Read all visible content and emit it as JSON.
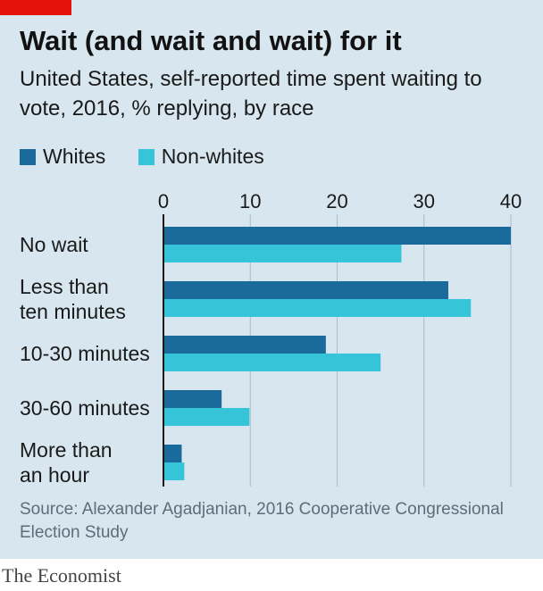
{
  "title": "Wait (and wait and wait) for it",
  "subtitle": "United States, self-reported time spent waiting to vote, 2016, % replying, by race",
  "source": "Source: Alexander Agadjanian, 2016 Cooperative Congressional Election Study",
  "brand": "The Economist",
  "colors": {
    "background": "#d8e6ef",
    "whites": "#1b6a9c",
    "non_whites": "#36c5d8",
    "accent_red": "#e3120b"
  },
  "chart_data": {
    "type": "bar",
    "orientation": "horizontal",
    "title": "Wait (and wait and wait) for it",
    "subtitle": "United States, self-reported time spent waiting to vote, 2016, % replying, by race",
    "categories": [
      [
        "No wait"
      ],
      [
        "Less than",
        "ten minutes"
      ],
      [
        "10-30 minutes"
      ],
      [
        "30-60 minutes"
      ],
      [
        "More than",
        "an hour"
      ]
    ],
    "series": [
      {
        "name": "Whites",
        "color": "#1b6a9c",
        "values": [
          40,
          32.8,
          18.7,
          6.7,
          2.1
        ]
      },
      {
        "name": "Non-whites",
        "color": "#36c5d8",
        "values": [
          27.4,
          35.4,
          25,
          9.9,
          2.4
        ]
      }
    ],
    "xlim": [
      0,
      40
    ],
    "xticks": [
      0,
      10,
      20,
      30,
      40
    ],
    "grid": true,
    "legend": "top-left"
  }
}
